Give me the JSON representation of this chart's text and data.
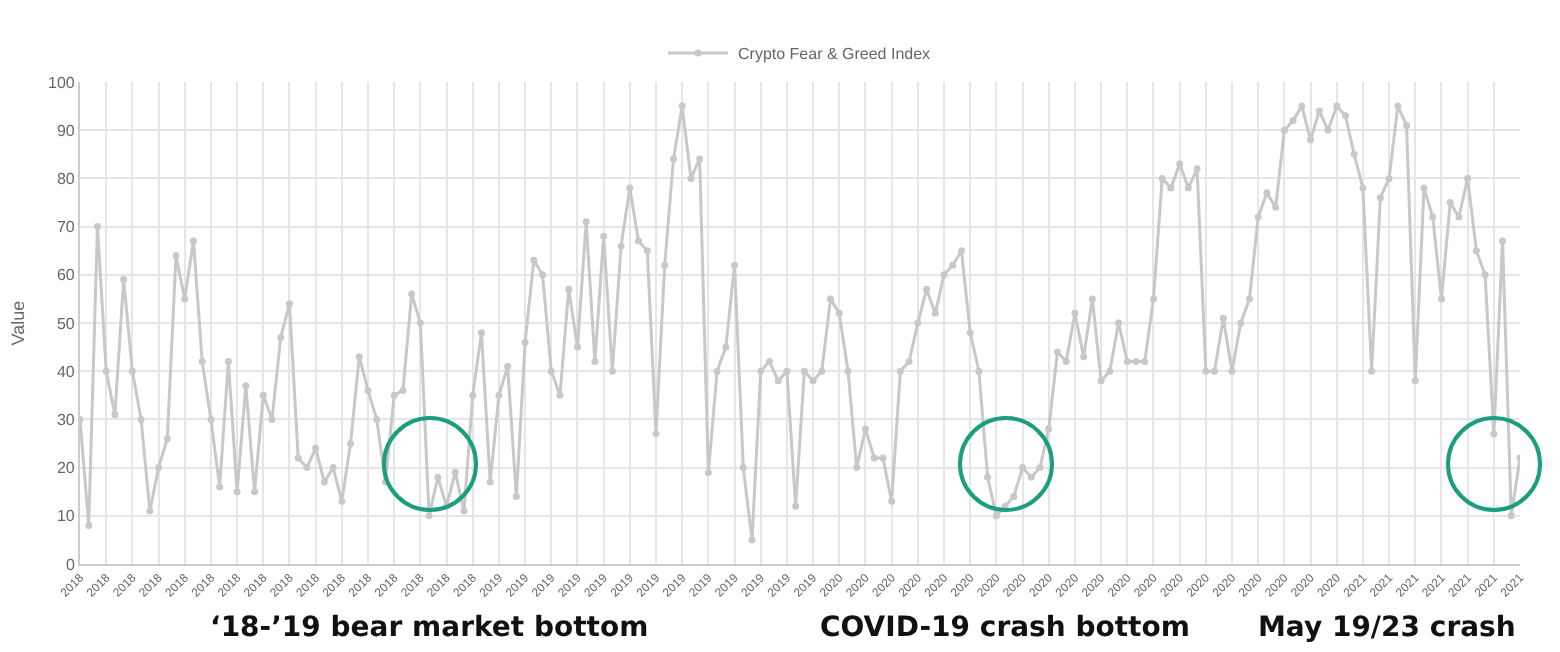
{
  "chart_data": {
    "type": "line",
    "ylabel": "Value",
    "categories": [
      "2018",
      null,
      null,
      "2018",
      null,
      null,
      "2018",
      null,
      null,
      "2018",
      null,
      null,
      "2018",
      null,
      null,
      "2018",
      null,
      null,
      "2018",
      null,
      null,
      "2018",
      null,
      null,
      "2018",
      null,
      null,
      "2018",
      null,
      null,
      "2018",
      null,
      null,
      "2018",
      null,
      null,
      "2018",
      null,
      null,
      "2018",
      null,
      null,
      "2018",
      null,
      null,
      "2018",
      null,
      null,
      "2019",
      null,
      null,
      "2019",
      null,
      null,
      "2019",
      null,
      null,
      "2019",
      null,
      null,
      "2019",
      null,
      null,
      "2019",
      null,
      null,
      "2019",
      null,
      null,
      "2019",
      null,
      null,
      "2019",
      null,
      null,
      "2019",
      null,
      null,
      "2019",
      null,
      null,
      "2019",
      null,
      null,
      "2019",
      null,
      null,
      "2020",
      null,
      null,
      "2020",
      null,
      null,
      "2020",
      null,
      null,
      "2020",
      null,
      null,
      "2020",
      null,
      null,
      "2020",
      null,
      null,
      "2020",
      null,
      null,
      "2020",
      null,
      null,
      "2020",
      null,
      null,
      "2020",
      null,
      null,
      "2020",
      null,
      null,
      "2020",
      null,
      null,
      "2020",
      null,
      null,
      "2020",
      null,
      null,
      "2020",
      null,
      null,
      "2020",
      null,
      null,
      "2020",
      null,
      null,
      "2020",
      null,
      null,
      "2020",
      null,
      null,
      "2020",
      null,
      null,
      "2021",
      null,
      null,
      "2021",
      null,
      null,
      "2021",
      null,
      null,
      "2021",
      null,
      null,
      "2021",
      null,
      null,
      "2021",
      null,
      null,
      "2021"
    ],
    "series": [
      {
        "name": "Crypto Fear & Greed Index",
        "color": "#c8c8c8",
        "values": [
          30,
          8,
          70,
          40,
          31,
          59,
          40,
          30,
          11,
          20,
          26,
          64,
          55,
          67,
          42,
          30,
          16,
          42,
          15,
          37,
          15,
          35,
          30,
          47,
          54,
          22,
          20,
          24,
          17,
          20,
          13,
          25,
          43,
          36,
          30,
          17,
          35,
          36,
          56,
          50,
          10,
          18,
          12,
          19,
          11,
          35,
          48,
          17,
          35,
          41,
          14,
          46,
          63,
          60,
          40,
          35,
          57,
          45,
          71,
          42,
          68,
          40,
          66,
          78,
          67,
          65,
          27,
          62,
          84,
          95,
          80,
          84,
          19,
          40,
          45,
          62,
          20,
          5,
          40,
          42,
          38,
          40,
          12,
          40,
          38,
          40,
          55,
          52,
          40,
          20,
          28,
          22,
          22,
          13,
          40,
          42,
          50,
          57,
          52,
          60,
          62,
          65,
          48,
          40,
          18,
          10,
          12,
          14,
          20,
          18,
          20,
          28,
          44,
          42,
          52,
          43,
          55,
          38,
          40,
          50,
          42,
          42,
          42,
          55,
          80,
          78,
          83,
          78,
          82,
          40,
          40,
          51,
          40,
          50,
          55,
          72,
          77,
          74,
          90,
          92,
          95,
          88,
          94,
          90,
          95,
          93,
          85,
          78,
          40,
          76,
          80,
          95,
          91,
          38,
          78,
          72,
          55,
          75,
          72,
          80,
          65,
          60,
          27,
          67,
          10,
          22
        ]
      }
    ],
    "ylim": [
      0,
      100
    ],
    "yticks": [
      0,
      10,
      20,
      30,
      40,
      50,
      60,
      70,
      80,
      90,
      100
    ],
    "grid": true,
    "legend": "top",
    "marker": "circle",
    "line_style": "solid",
    "annotations": [
      "‘18-’19 bear market bottom",
      "COVID-19 crash bottom",
      "May 19/23 crash"
    ]
  }
}
